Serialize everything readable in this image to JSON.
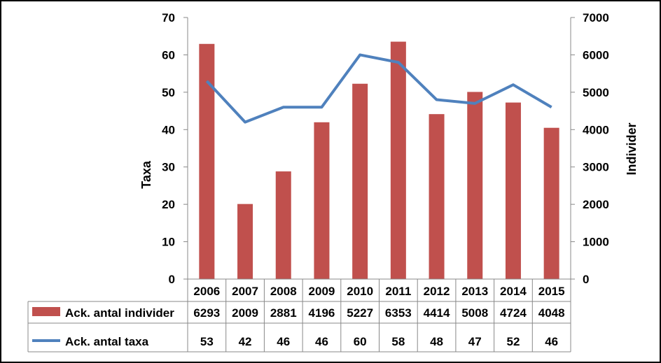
{
  "chart_data": {
    "type": "bar",
    "categories": [
      "2006",
      "2007",
      "2008",
      "2009",
      "2010",
      "2011",
      "2012",
      "2013",
      "2014",
      "2015"
    ],
    "series": [
      {
        "name": "Ack. antal individer",
        "type": "bar",
        "axis": "right",
        "color": "#C0504D",
        "values": [
          6293,
          2009,
          2881,
          4196,
          5227,
          6353,
          4414,
          5008,
          4724,
          4048
        ]
      },
      {
        "name": "Ack. antal taxa",
        "type": "line",
        "axis": "left",
        "color": "#4F81BD",
        "values": [
          53,
          42,
          46,
          46,
          60,
          58,
          48,
          47,
          52,
          46
        ]
      }
    ],
    "ylabel_left": "Taxa",
    "ylabel_right": "Individer",
    "ylim_left": [
      0,
      70
    ],
    "ylim_right": [
      0,
      7000
    ],
    "yticks_left": [
      "0",
      "10",
      "20",
      "30",
      "40",
      "50",
      "60",
      "70"
    ],
    "yticks_right": [
      "0",
      "1000",
      "2000",
      "3000",
      "4000",
      "5000",
      "6000",
      "7000"
    ],
    "grid": false,
    "legend": "data-table",
    "data_table": [
      {
        "label": "Ack. antal individer",
        "values": [
          "6293",
          "2009",
          "2881",
          "4196",
          "5227",
          "6353",
          "4414",
          "5008",
          "4724",
          "4048"
        ]
      },
      {
        "label": "Ack. antal taxa",
        "values": [
          "53",
          "42",
          "46",
          "46",
          "60",
          "58",
          "48",
          "47",
          "52",
          "46"
        ]
      }
    ]
  }
}
